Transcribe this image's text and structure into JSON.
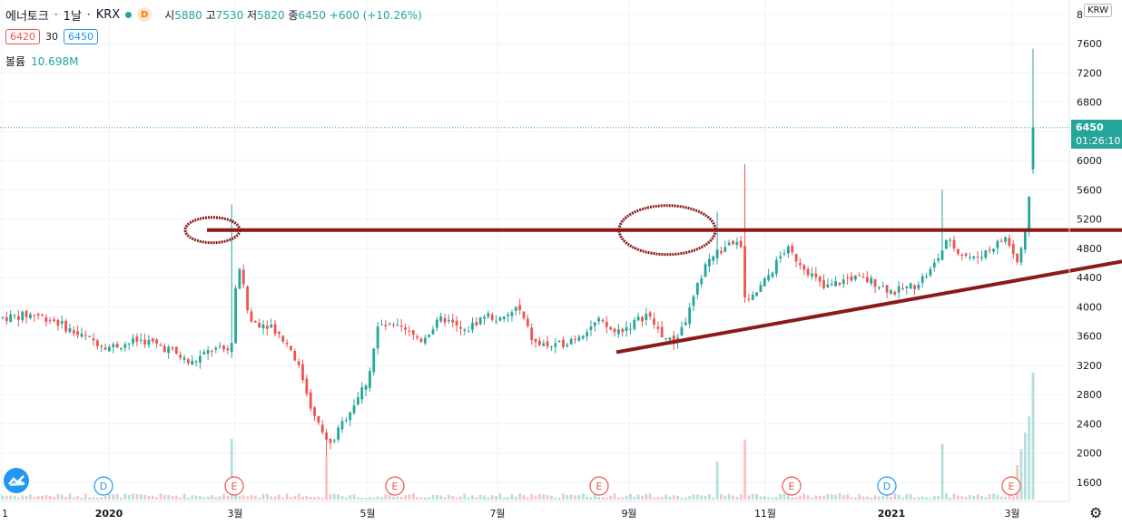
{
  "legend": {
    "symbol": "에너토크",
    "interval": "1날",
    "exchange": "KRX",
    "d_badge": "D",
    "ohlc": {
      "open_label": "시",
      "open": "5880",
      "high_label": "고",
      "high": "7530",
      "low_label": "저",
      "low": "5820",
      "close_label": "종",
      "close": "6450",
      "change": "+600 (+10.26%)"
    },
    "bid": "6420",
    "spread": "30",
    "ask": "6450",
    "volume_label": "볼륨",
    "volume_value": "10.698M"
  },
  "currency": "KRW",
  "price_tag": {
    "price": "6450",
    "countdown": "01:26:10"
  },
  "colors": {
    "up": "#26a69a",
    "down": "#ef5350",
    "drawing": "#8b1a1a",
    "dividend": "#2196f3",
    "earnings": "#ef5350"
  },
  "chart_data": {
    "type": "candlestick",
    "ylim": [
      1400,
      8000
    ],
    "y_ticks": [
      "1600",
      "2000",
      "2400",
      "2800",
      "3200",
      "3600",
      "4000",
      "4400",
      "4800",
      "5200",
      "5600",
      "6000",
      "6400",
      "6800",
      "7200",
      "7600",
      "8"
    ],
    "x_ticks": [
      "1",
      "2020",
      "3월",
      "5월",
      "7월",
      "9월",
      "11월",
      "2021",
      "3월"
    ],
    "last_price": 6450,
    "notable": {
      "pre_2020_level": 3800,
      "feb_2020_spike_high": 5400,
      "mar_2020_low": 1950,
      "aug_2020_high": 5300,
      "sep_2020_spike_high": 5950,
      "jan_2021_spike_high": 5600,
      "latest_high": 7530,
      "latest_open": 5880,
      "latest_low": 5820,
      "latest_close": 6450
    },
    "markers": [
      {
        "type": "dividend",
        "label": "D"
      },
      {
        "type": "earnings",
        "label": "E"
      },
      {
        "type": "earnings",
        "label": "E"
      },
      {
        "type": "earnings",
        "label": "E"
      },
      {
        "type": "earnings",
        "label": "E"
      },
      {
        "type": "dividend",
        "label": "D"
      },
      {
        "type": "earnings",
        "label": "E"
      }
    ],
    "annotations": {
      "resistance_price": 5050,
      "trendline_from_price": 3380,
      "trendline_to_price": 4620
    }
  }
}
